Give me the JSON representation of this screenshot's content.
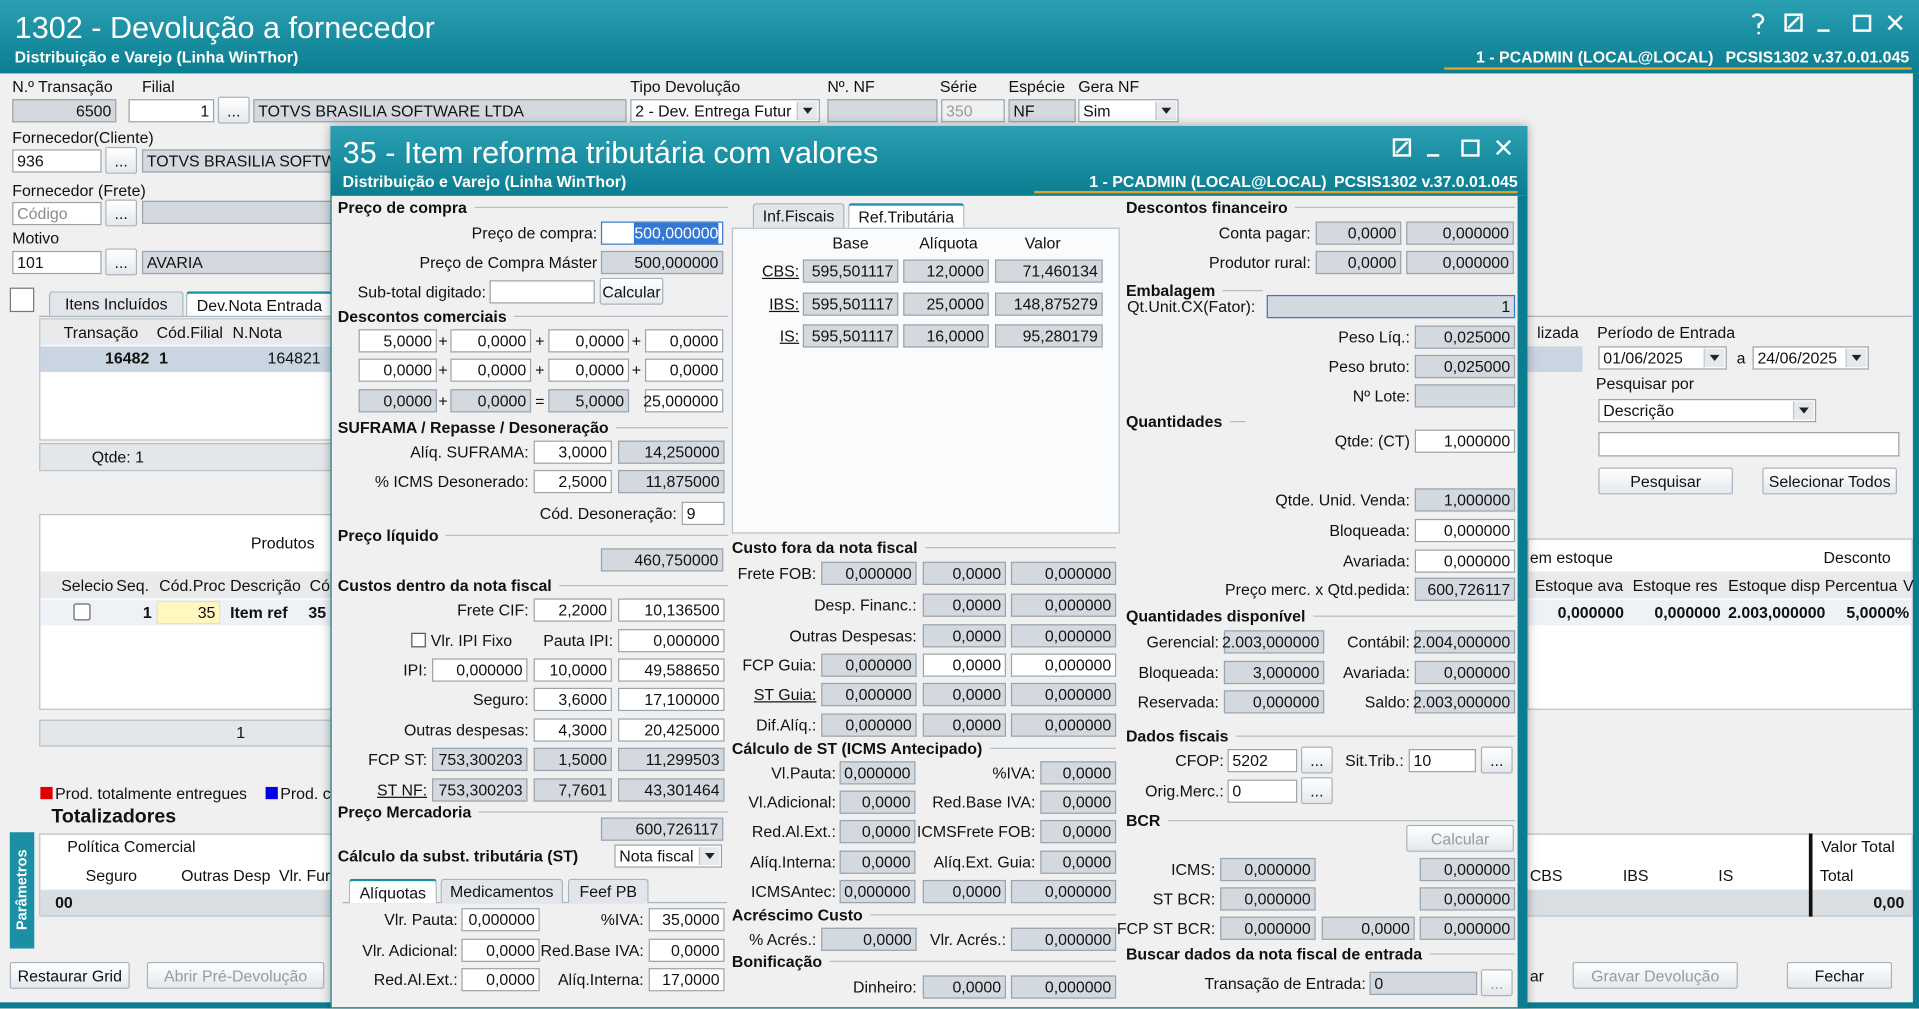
{
  "main": {
    "title": "1302 - Devolução a fornecedor",
    "subtitle": "Distribuição e Varejo (Linha WinThor)",
    "user": "1 - PCADMIN (LOCAL@LOCAL)",
    "version": "PCSIS1302  v.37.0.01.045",
    "side": "Parâmetros",
    "rows": [
      [
        "N.º Transação",
        "Filial",
        "Tipo Devolução",
        "Nº. NF",
        "Série",
        "Espécie",
        "Gera NF"
      ],
      [
        "6500",
        "1",
        "...",
        "TOTVS BRASILIA SOFTWARE LTDA",
        "2 - Dev. Entrega Futur",
        "350",
        "NF",
        "Sim"
      ],
      [
        "Fornecedor(Cliente)"
      ],
      [
        "936",
        "...",
        "TOTVS BRASILIA SOFTWARE LTDA"
      ],
      [
        "Fornecedor (Frete)"
      ],
      [
        "Código",
        "..."
      ],
      [
        "Motivo"
      ],
      [
        "101",
        "...",
        "AVARIA"
      ],
      [
        "Itens Incluídos",
        "Dev.Nota Entrada"
      ],
      [
        "Transação",
        "Cód.Filial",
        "N.Nota",
        "lizada",
        "Período de Entrada"
      ],
      [
        "16482",
        "1",
        "164821",
        "01/06/2025",
        "a",
        "24/06/2025"
      ],
      [
        "Pesquisar por"
      ],
      [
        "Descrição"
      ],
      [
        "Qtde: 1"
      ],
      [
        "Pesquisar",
        "Selecionar Todos"
      ],
      [
        "Produtos"
      ],
      [
        "em estoque",
        "Desconto"
      ],
      [
        "Selecio",
        "Seq.",
        "Cód.Proc",
        "Descrição",
        "Có",
        "Estoque ava",
        "Estoque res",
        "Estoque disp",
        "Percentua",
        "V"
      ],
      [
        "1",
        "35",
        "Item ref",
        "35",
        "0,000000",
        "0,000000",
        "2.003,000000",
        "5,0000%"
      ],
      [
        "1"
      ],
      [
        "Prod. totalmente entregues",
        "Prod. c"
      ],
      [
        "Totalizadores"
      ],
      [
        "Política Comercial",
        "Valor Total"
      ],
      [
        "Seguro",
        "Outras Desp",
        "Vlr. Fur",
        "CBS",
        "IBS",
        "IS",
        "Total"
      ],
      [
        "00",
        "0,00"
      ],
      [
        "Restaurar Grid",
        "Abrir Pré-Devolução",
        "ar",
        "Gravar Devolução",
        "Fechar"
      ]
    ]
  },
  "dialog": {
    "title": "35 - Item reforma tributária com valores",
    "subtitle": "Distribuição e Varejo (Linha WinThor)",
    "user": "1 - PCADMIN (LOCAL@LOCAL)",
    "version": "PCSIS1302  v.37.0.01.045",
    "rows": [
      [
        "Preço de compra",
        "Descontos financeiro"
      ],
      [
        "Inf.Fiscais",
        "Ref.Tributária"
      ],
      [
        "Preço de compra:",
        "500,000000",
        "Conta pagar:",
        "0,0000",
        "0,000000"
      ],
      [
        "Base",
        "Alíquota",
        "Valor"
      ],
      [
        "Preço de Compra Máster",
        "500,000000",
        "Produtor rural:",
        "0,0000",
        "0,000000"
      ],
      [
        "CBS:",
        "595,501117",
        "12,0000",
        "71,460134"
      ],
      [
        "Sub-total digitado:",
        "Calcular",
        "Embalagem"
      ],
      [
        "IBS:",
        "595,501117",
        "25,0000",
        "148,875279"
      ],
      [
        "Qt.Unit.CX(Fator):",
        "1"
      ],
      [
        "Descontos comerciais"
      ],
      [
        "IS:",
        "595,501117",
        "16,0000",
        "95,280179"
      ],
      [
        "Peso Líq.:",
        "0,025000"
      ],
      [
        "5,0000",
        "+",
        "0,0000",
        "+",
        "0,0000",
        "+",
        "0,0000"
      ],
      [
        "Peso bruto:",
        "0,025000"
      ],
      [
        "0,0000",
        "+",
        "0,0000",
        "+",
        "0,0000",
        "+",
        "0,0000"
      ],
      [
        "Nº Lote:"
      ],
      [
        "0,0000",
        "+",
        "0,0000",
        "=",
        "5,0000",
        "25,000000"
      ],
      [
        "Quantidades"
      ],
      [
        "SUFRAMA / Repasse / Desoneração"
      ],
      [
        "Qtde: (CT)",
        "1,000000"
      ],
      [
        "Alíq. SUFRAMA:",
        "3,0000",
        "14,250000"
      ],
      [
        "% ICMS Desonerado:",
        "2,5000",
        "11,875000"
      ],
      [
        "Qtde. Unid. Venda:",
        "1,000000"
      ],
      [
        "Cód. Desoneração:",
        "9"
      ],
      [
        "Bloqueada:",
        "0,000000"
      ],
      [
        "Preço líquido"
      ],
      [
        "Custo fora da nota fiscal"
      ],
      [
        "460,750000"
      ],
      [
        "Avariada:",
        "0,000000"
      ],
      [
        "Frete FOB:",
        "0,000000",
        "0,0000",
        "0,000000"
      ],
      [
        "Custos dentro da nota fiscal"
      ],
      [
        "Preço merc. x Qtd.pedida:",
        "600,726117"
      ],
      [
        "Desp. Financ.:",
        "0,0000",
        "0,000000"
      ],
      [
        "Frete CIF:",
        "2,2000",
        "10,136500"
      ],
      [
        "Quantidades disponível"
      ],
      [
        "Outras Despesas:",
        "0,0000",
        "0,000000"
      ],
      [
        "Vlr. IPI Fixo",
        "Pauta IPI:",
        "0,000000"
      ],
      [
        "Gerencial:",
        "2.003,000000",
        "Contábil:",
        "2.004,000000"
      ],
      [
        "FCP Guia:",
        "0,000000",
        "0,0000",
        "0,000000"
      ],
      [
        "IPI:",
        "0,000000",
        "10,0000",
        "49,588650"
      ],
      [
        "Bloqueada:",
        "3,000000",
        "Avariada:",
        "0,000000"
      ],
      [
        "ST Guia:",
        "0,000000",
        "0,0000",
        "0,000000"
      ],
      [
        "Seguro:",
        "3,6000",
        "17,100000"
      ],
      [
        "Reservada:",
        "0,000000",
        "Saldo:",
        "2.003,000000"
      ],
      [
        "Dif.Alíq.:",
        "0,000000",
        "0,0000",
        "0,000000"
      ],
      [
        "Outras despesas:",
        "4,3000",
        "20,425000"
      ],
      [
        "Dados fiscais"
      ],
      [
        "Cálculo de ST (ICMS Antecipado)"
      ],
      [
        "FCP ST:",
        "753,300203",
        "1,5000",
        "11,299503"
      ],
      [
        "CFOP:",
        "5202",
        "...",
        "Sit.Trib.:",
        "10",
        "..."
      ],
      [
        "Vl.Pauta:",
        "0,000000",
        "%IVA:",
        "0,0000"
      ],
      [
        "ST NF:",
        "753,300203",
        "7,7601",
        "43,301464"
      ],
      [
        "Orig.Merc.:",
        "0",
        "..."
      ],
      [
        "Vl.Adicional:",
        "0,0000",
        "Red.Base IVA:",
        "0,0000"
      ],
      [
        "Preço Mercadoria"
      ],
      [
        "BCR"
      ],
      [
        "600,726117"
      ],
      [
        "Red.Al.Ext.:",
        "0,0000",
        "ICMSFrete FOB:",
        "0,0000"
      ],
      [
        "Calcular"
      ],
      [
        "Cálculo da subst. tributária (ST)",
        "Nota fiscal"
      ],
      [
        "Alíq.Interna:",
        "0,0000",
        "Alíq.Ext. Guia:",
        "0,0000"
      ],
      [
        "ICMS:",
        "0,000000",
        "0,000000"
      ],
      [
        "Alíquotas",
        "Medicamentos",
        "Feef PB"
      ],
      [
        "ICMSAntec:",
        "0,000000",
        "0,0000",
        "0,000000"
      ],
      [
        "ST BCR:",
        "0,000000",
        "0,000000"
      ],
      [
        "Acréscimo Custo"
      ],
      [
        "Vlr. Pauta:",
        "0,000000",
        "%IVA:",
        "35,0000"
      ],
      [
        "FCP ST BCR:",
        "0,000000",
        "0,0000",
        "0,000000"
      ],
      [
        "% Acrés.:",
        "0,0000",
        "Vlr. Acrés.:",
        "0,000000"
      ],
      [
        "Vlr. Adicional:",
        "0,0000",
        "Red.Base IVA:",
        "0,0000"
      ],
      [
        "Buscar dados da nota fiscal de entrada"
      ],
      [
        "Bonificação"
      ],
      [
        "Red.Al.Ext.:",
        "0,0000",
        "Alíq.Interna:",
        "17,0000"
      ],
      [
        "Transação de Entrada:",
        "0",
        "..."
      ],
      [
        "Dinheiro:",
        "0,0000",
        "0,000000"
      ]
    ]
  }
}
